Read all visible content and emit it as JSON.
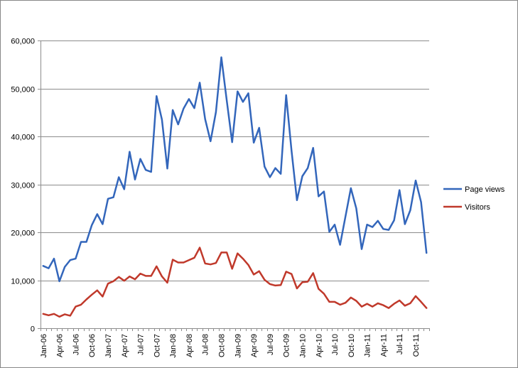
{
  "chart_data": {
    "type": "line",
    "title": "",
    "xlabel": "",
    "ylabel": "",
    "ylim": [
      0,
      60000
    ],
    "yticks": [
      0,
      10000,
      20000,
      30000,
      40000,
      50000,
      60000
    ],
    "ytick_labels": [
      "0",
      "10,000",
      "20,000",
      "30,000",
      "40,000",
      "50,000",
      "60,000"
    ],
    "grid": "horizontal",
    "legend_position": "right",
    "x": [
      "Jan-06",
      "Feb-06",
      "Mar-06",
      "Apr-06",
      "May-06",
      "Jun-06",
      "Jul-06",
      "Aug-06",
      "Sep-06",
      "Oct-06",
      "Nov-06",
      "Dec-06",
      "Jan-07",
      "Feb-07",
      "Mar-07",
      "Apr-07",
      "May-07",
      "Jun-07",
      "Jul-07",
      "Aug-07",
      "Sep-07",
      "Oct-07",
      "Nov-07",
      "Dec-07",
      "Jan-08",
      "Feb-08",
      "Mar-08",
      "Apr-08",
      "May-08",
      "Jun-08",
      "Jul-08",
      "Aug-08",
      "Sep-08",
      "Oct-08",
      "Nov-08",
      "Dec-08",
      "Jan-09",
      "Feb-09",
      "Mar-09",
      "Apr-09",
      "May-09",
      "Jun-09",
      "Jul-09",
      "Aug-09",
      "Sep-09",
      "Oct-09",
      "Nov-09",
      "Dec-09",
      "Jan-10",
      "Feb-10",
      "Mar-10",
      "Apr-10",
      "May-10",
      "Jun-10",
      "Jul-10",
      "Aug-10",
      "Sep-10",
      "Oct-10",
      "Nov-10",
      "Dec-10",
      "Jan-11",
      "Feb-11",
      "Mar-11",
      "Apr-11",
      "May-11",
      "Jun-11",
      "Jul-11",
      "Aug-11",
      "Sep-11",
      "Oct-11",
      "Nov-11",
      "Dec-11"
    ],
    "x_tick_labels": [
      "Jan-06",
      "Apr-06",
      "Jul-06",
      "Oct-06",
      "Jan-07",
      "Apr-07",
      "Jul-07",
      "Oct-07",
      "Jan-08",
      "Apr-08",
      "Jul-08",
      "Oct-08",
      "Jan-09",
      "Apr-09",
      "Jul-09",
      "Oct-09",
      "Jan-10",
      "Apr-10",
      "Jul-10",
      "Oct-10",
      "Jan-11",
      "Apr-11",
      "Jul-11",
      "Oct-11"
    ],
    "series": [
      {
        "name": "Page views",
        "color": "#3366bb",
        "values": [
          13000,
          12500,
          14500,
          9800,
          12800,
          14200,
          14500,
          18000,
          18000,
          21500,
          23800,
          21700,
          27000,
          27300,
          31500,
          29000,
          36800,
          31000,
          35300,
          33000,
          32600,
          48400,
          43500,
          33300,
          45500,
          42500,
          45800,
          47800,
          45900,
          51200,
          43600,
          39000,
          45100,
          56500,
          47500,
          38800,
          49400,
          47200,
          49000,
          38700,
          41800,
          33700,
          31500,
          33400,
          32200,
          48600,
          37000,
          26700,
          31700,
          33400,
          37600,
          27500,
          28500,
          20100,
          21600,
          17400,
          23300,
          29200,
          25000,
          16500,
          21600,
          21100,
          22400,
          20700,
          20500,
          22500,
          28800,
          21700,
          24600,
          30800,
          26300,
          15700
        ]
      },
      {
        "name": "Visitors",
        "color": "#c0392b",
        "values": [
          3000,
          2700,
          3000,
          2400,
          2900,
          2600,
          4500,
          4900,
          6000,
          7000,
          7900,
          6600,
          9300,
          9800,
          10700,
          9900,
          10800,
          10200,
          11400,
          10900,
          10900,
          12900,
          10800,
          9500,
          14300,
          13700,
          13700,
          14200,
          14700,
          16800,
          13500,
          13300,
          13600,
          15800,
          15800,
          12400,
          15600,
          14500,
          13200,
          11200,
          11900,
          10100,
          9200,
          8900,
          9000,
          11800,
          11300,
          8300,
          9600,
          9700,
          11500,
          8200,
          7200,
          5500,
          5500,
          4900,
          5300,
          6400,
          5700,
          4500,
          5100,
          4500,
          5200,
          4800,
          4200,
          5100,
          5800,
          4700,
          5200,
          6700,
          5500,
          4200
        ]
      }
    ]
  }
}
